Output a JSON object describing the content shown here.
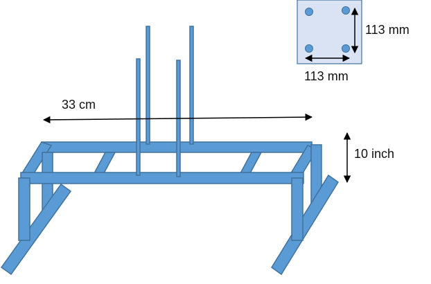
{
  "diagram": {
    "labels": {
      "section_height": "113 mm",
      "section_width": "113 mm",
      "length": "33 cm",
      "height": "10 inch"
    },
    "colors": {
      "steel_fill": "#5b9bd5",
      "steel_stroke": "#41719c",
      "plate_fill": "#dae3f3",
      "bolt_fill": "#5b9bd5",
      "arrow": "#000000"
    }
  }
}
